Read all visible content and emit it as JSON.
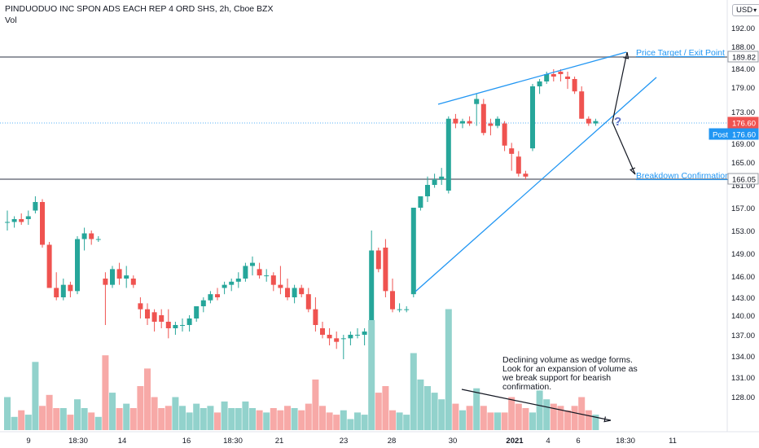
{
  "header": {
    "title": "PINDUODUO INC SPON ADS EACH REP 4 ORD SHS, 2h, Cboe BZX",
    "volume_label": "Vol"
  },
  "currency": {
    "label": "USD"
  },
  "annotations": {
    "price_target": "Price Target / Exit Point",
    "breakdown": "Breakdown Confirmation",
    "question_mark": "?",
    "volume_note": "Declining volume as wedge forms. Look for an expansion of volume as we break support for bearish confirmation."
  },
  "chart_data": {
    "type": "candlestick",
    "title": "PINDUODUO INC SPON ADS EACH REP 4 ORD SHS, 2h, Cboe BZX",
    "y_axis": {
      "ticks": [
        "192.00",
        "188.00",
        "184.00",
        "179.00",
        "173.00",
        "169.00",
        "165.00",
        "161.00",
        "157.00",
        "153.00",
        "149.00",
        "146.00",
        "143.00",
        "140.00",
        "137.00",
        "134.00",
        "131.00",
        "128.00"
      ],
      "range": [
        125,
        194
      ]
    },
    "x_axis": {
      "ticks": [
        "9",
        "18:30",
        "14",
        "16",
        "18:30",
        "21",
        "23",
        "28",
        "30",
        "2021",
        "4",
        "6",
        "18:30",
        "11"
      ]
    },
    "price_labels": [
      {
        "label": "189.82",
        "value": 189.82,
        "style": "level"
      },
      {
        "label": "176.60",
        "value": 176.6,
        "style": "last"
      },
      {
        "label": "Post",
        "value": 176.6,
        "style": "post"
      },
      {
        "label": "166.05",
        "value": 166.05,
        "style": "level"
      }
    ],
    "horizontal_levels": [
      189.82,
      166.05
    ],
    "candles": [
      [
        158.5,
        160.5,
        157.0,
        158.5
      ],
      [
        158.5,
        159.5,
        157.5,
        159.0
      ],
      [
        159.0,
        160.0,
        158.0,
        158.5
      ],
      [
        159.0,
        160.5,
        158.0,
        159.5
      ],
      [
        160.5,
        163.0,
        160.0,
        162.0
      ],
      [
        162.0,
        162.5,
        154.0,
        154.5
      ],
      [
        154.5,
        155.0,
        147.5,
        147.5
      ],
      [
        147.5,
        150.0,
        145.5,
        146.0
      ],
      [
        146.0,
        149.0,
        145.5,
        148.0
      ],
      [
        148.0,
        148.5,
        146.0,
        147.0
      ],
      [
        147.0,
        156.0,
        146.5,
        155.5
      ],
      [
        155.5,
        157.5,
        153.5,
        156.5
      ],
      [
        156.5,
        157.0,
        154.5,
        155.5
      ],
      [
        155.5,
        156.0,
        155.0,
        155.5
      ],
      [
        149.0,
        150.0,
        141.5,
        148.0
      ],
      [
        148.0,
        151.0,
        147.5,
        150.5
      ],
      [
        150.5,
        151.5,
        148.0,
        149.0
      ],
      [
        149.0,
        151.0,
        147.5,
        149.5
      ],
      [
        149.0,
        149.5,
        147.5,
        148.0
      ],
      [
        145.0,
        146.0,
        142.5,
        144.0
      ],
      [
        144.0,
        145.0,
        141.5,
        142.5
      ],
      [
        143.5,
        144.0,
        140.5,
        142.0
      ],
      [
        143.0,
        144.0,
        141.0,
        142.0
      ],
      [
        142.0,
        144.0,
        139.5,
        141.0
      ],
      [
        141.0,
        142.0,
        140.0,
        141.5
      ],
      [
        141.5,
        142.5,
        140.5,
        141.5
      ],
      [
        141.5,
        143.0,
        140.5,
        142.5
      ],
      [
        142.5,
        144.5,
        142.0,
        144.5
      ],
      [
        144.5,
        146.0,
        143.5,
        145.5
      ],
      [
        145.5,
        147.0,
        145.0,
        146.5
      ],
      [
        146.5,
        147.5,
        145.5,
        146.0
      ],
      [
        147.5,
        148.5,
        146.5,
        148.0
      ],
      [
        148.0,
        149.0,
        147.0,
        148.5
      ],
      [
        148.5,
        150.0,
        147.5,
        149.0
      ],
      [
        149.0,
        151.5,
        148.5,
        151.0
      ],
      [
        151.0,
        152.5,
        149.5,
        151.5
      ],
      [
        150.5,
        151.5,
        149.0,
        149.5
      ],
      [
        149.5,
        150.5,
        148.5,
        149.5
      ],
      [
        149.5,
        150.0,
        147.0,
        148.0
      ],
      [
        148.0,
        151.0,
        146.5,
        147.5
      ],
      [
        147.5,
        149.0,
        145.5,
        146.0
      ],
      [
        146.0,
        148.0,
        145.0,
        147.5
      ],
      [
        147.5,
        148.0,
        146.0,
        146.5
      ],
      [
        146.5,
        147.5,
        143.5,
        144.0
      ],
      [
        144.0,
        146.0,
        140.5,
        141.5
      ],
      [
        141.0,
        142.0,
        139.5,
        140.0
      ],
      [
        140.0,
        141.0,
        138.5,
        139.5
      ],
      [
        139.5,
        140.5,
        138.0,
        139.0
      ],
      [
        139.5,
        140.0,
        136.5,
        139.5
      ],
      [
        139.5,
        140.5,
        138.5,
        140.0
      ],
      [
        140.0,
        141.0,
        139.5,
        140.0
      ],
      [
        140.0,
        141.0,
        138.5,
        140.5
      ],
      [
        138.0,
        157.0,
        137.5,
        153.5
      ],
      [
        153.5,
        154.0,
        150.0,
        150.5
      ],
      [
        154.0,
        155.5,
        146.0,
        147.0
      ],
      [
        147.0,
        149.0,
        143.5,
        144.0
      ],
      [
        144.0,
        145.0,
        143.5,
        144.0
      ],
      [
        144.0,
        144.5,
        143.5,
        144.0
      ],
      [
        146.5,
        161.0,
        146.0,
        161.0
      ],
      [
        161.0,
        163.0,
        160.5,
        163.0
      ],
      [
        163.0,
        166.5,
        162.0,
        165.0
      ],
      [
        165.0,
        167.0,
        164.5,
        166.0
      ],
      [
        166.0,
        168.0,
        165.0,
        166.5
      ],
      [
        164.0,
        178.0,
        163.5,
        177.5
      ],
      [
        177.5,
        178.5,
        175.5,
        176.5
      ],
      [
        176.5,
        177.5,
        175.5,
        177.0
      ],
      [
        177.0,
        178.0,
        176.0,
        176.5
      ],
      [
        180.5,
        182.5,
        176.0,
        181.5
      ],
      [
        180.5,
        181.5,
        174.0,
        174.5
      ],
      [
        176.5,
        177.5,
        174.0,
        176.0
      ],
      [
        176.0,
        178.0,
        175.5,
        177.5
      ],
      [
        176.5,
        177.0,
        171.0,
        172.0
      ],
      [
        171.5,
        172.5,
        167.5,
        170.5
      ],
      [
        170.0,
        171.0,
        166.5,
        167.0
      ],
      [
        167.0,
        167.5,
        166.0,
        166.5
      ],
      [
        171.5,
        184.5,
        171.0,
        184.0
      ],
      [
        184.0,
        185.5,
        182.5,
        185.0
      ],
      [
        185.0,
        187.0,
        184.5,
        186.5
      ],
      [
        186.5,
        187.5,
        185.0,
        186.0
      ],
      [
        187.0,
        187.5,
        185.0,
        186.5
      ],
      [
        186.0,
        187.0,
        183.5,
        185.5
      ],
      [
        185.5,
        186.0,
        182.5,
        183.0
      ],
      [
        183.0,
        184.0,
        177.5,
        177.5
      ],
      [
        177.5,
        178.0,
        176.0,
        176.5
      ],
      [
        176.5,
        177.5,
        176.0,
        177.0
      ]
    ],
    "volumes": [
      0.3,
      0.12,
      0.18,
      0.14,
      0.62,
      0.22,
      0.32,
      0.2,
      0.2,
      0.14,
      0.28,
      0.2,
      0.16,
      0.12,
      0.68,
      0.34,
      0.2,
      0.24,
      0.2,
      0.4,
      0.56,
      0.3,
      0.2,
      0.22,
      0.3,
      0.22,
      0.16,
      0.24,
      0.2,
      0.22,
      0.16,
      0.26,
      0.2,
      0.2,
      0.26,
      0.2,
      0.18,
      0.16,
      0.2,
      0.18,
      0.22,
      0.2,
      0.18,
      0.24,
      0.46,
      0.22,
      0.16,
      0.14,
      0.18,
      0.1,
      0.16,
      0.14,
      1.0,
      0.34,
      0.4,
      0.18,
      0.16,
      0.14,
      0.7,
      0.46,
      0.4,
      0.34,
      0.28,
      1.1,
      0.24,
      0.18,
      0.22,
      0.38,
      0.22,
      0.16,
      0.16,
      0.16,
      0.3,
      0.24,
      0.2,
      0.16,
      0.36,
      0.28,
      0.24,
      0.22,
      0.18,
      0.22,
      0.3,
      0.18,
      0.14
    ],
    "wedge": {
      "upper": [
        [
          538,
          128
        ],
        [
          769,
          64
        ]
      ],
      "lower": [
        [
          510,
          358
        ],
        [
          806,
          95
        ]
      ],
      "target_arrow": [
        [
          752,
          150
        ],
        [
          770,
          64
        ]
      ],
      "breakdown_arrow": [
        [
          752,
          150
        ],
        [
          780,
          214
        ]
      ],
      "volume_trend": [
        [
          567,
          478
        ],
        [
          750,
          516
        ]
      ]
    },
    "colors": {
      "up": "#26a69a",
      "down": "#ef5350",
      "up_vol": "#92d2cc",
      "down_vol": "#f7a9a7",
      "line": "#2196f3",
      "last": "#ef5350",
      "post": "#2196f3"
    }
  }
}
